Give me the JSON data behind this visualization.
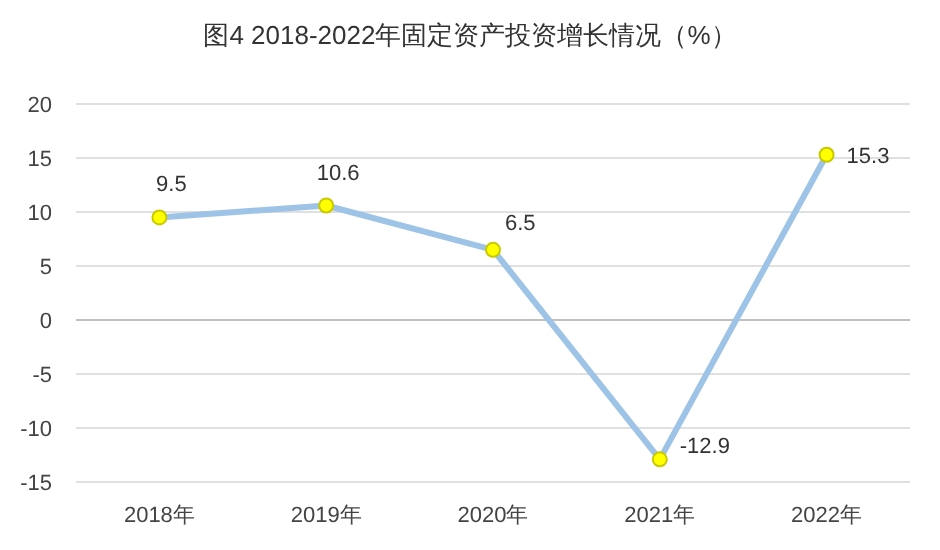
{
  "chart_data": {
    "type": "line",
    "title": "图4 2018-2022年固定资产投资增长情况（%）",
    "categories": [
      "2018年",
      "2019年",
      "2020年",
      "2021年",
      "2022年"
    ],
    "series": [
      {
        "color": "#9dc3e6",
        "values": [
          9.5,
          10.6,
          6.5,
          -12.9,
          15.3
        ]
      }
    ],
    "ylim": [
      -15,
      20
    ],
    "yticks": [
      -15,
      -10,
      -5,
      0,
      5,
      10,
      15,
      20
    ],
    "grid": "y",
    "marker": "circle",
    "line_style": "solid",
    "data_labels": true
  }
}
